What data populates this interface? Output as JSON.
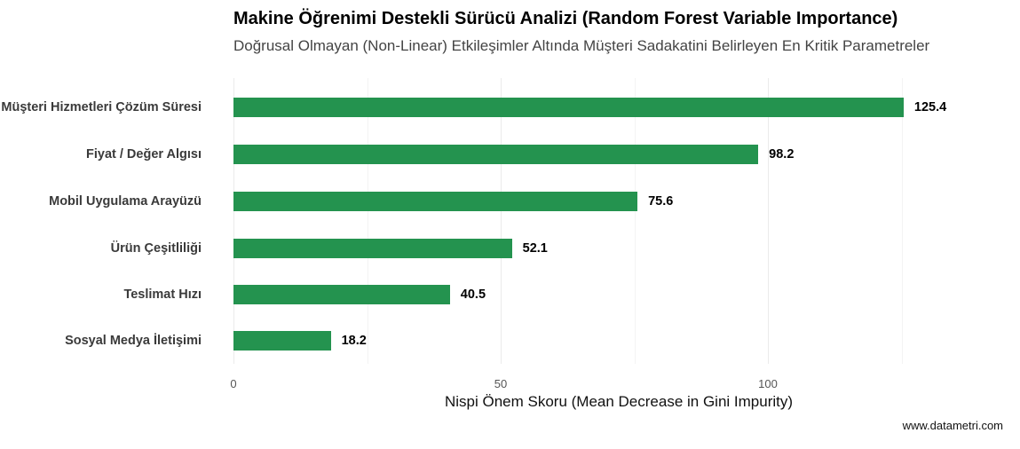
{
  "title": "Makine Öğrenimi Destekli Sürücü Analizi (Random Forest Variable Importance)",
  "subtitle": "Doğrusal Olmayan (Non-Linear) Etkileşimler Altında Müşteri Sadakatini Belirleyen En Kritik Parametreler",
  "caption": "www.datametri.com",
  "colors": {
    "bar": "#24934f",
    "grid": "#ebebeb"
  },
  "chart_data": {
    "type": "bar",
    "orientation": "horizontal",
    "title": "Makine Öğrenimi Destekli Sürücü Analizi (Random Forest Variable Importance)",
    "subtitle": "Doğrusal Olmayan (Non-Linear) Etkileşimler Altında Müşteri Sadakatini Belirleyen En Kritik Parametreler",
    "xlabel": "Nispi Önem Skoru (Mean Decrease in Gini Impurity)",
    "ylabel": "",
    "categories": [
      "Müşteri Hizmetleri Çözüm Süresi",
      "Fiyat / Değer Algısı",
      "Mobil Uygulama Arayüzü",
      "Ürün Çeşitliliği",
      "Teslimat Hızı",
      "Sosyal Medya İletişimi"
    ],
    "values": [
      125.4,
      98.2,
      75.6,
      52.1,
      40.5,
      18.2
    ],
    "value_labels": [
      "125.4",
      "98.2",
      "75.6",
      "52.1",
      "40.5",
      "18.2"
    ],
    "xticks": [
      "0",
      "50",
      "100"
    ],
    "xlim": [
      0,
      143
    ],
    "grid": true,
    "legend": "none"
  }
}
